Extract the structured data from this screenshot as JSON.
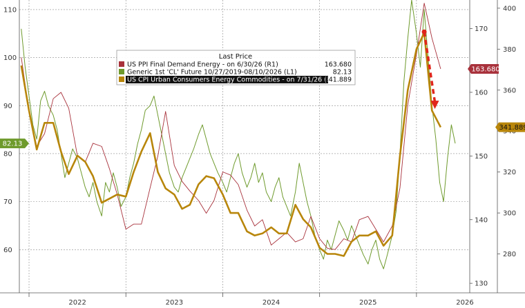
{
  "chart_data": {
    "type": "line",
    "title": "",
    "legend": {
      "title": "Last Price",
      "placement": "top-center",
      "entries": [
        {
          "label": "US PPI Final Demand Energy -   on 6/30/26  (R1)",
          "value": "163.680",
          "color": "#a8313b"
        },
        {
          "label": "Generic 1st 'CL' Future 10/27/2019-08/10/2026   (L1)",
          "value": "82.13",
          "color": "#6e9a2c"
        },
        {
          "label": "US CPI Urban Consumers Energy Commodities -   on 7/31/26  (R2)",
          "value": "341.889",
          "color": "#b8860b"
        }
      ]
    },
    "x_ticks": [
      "2022",
      "2023",
      "2024",
      "2025",
      "2026"
    ],
    "x_range": [
      2021.9,
      2026.55
    ],
    "axes": {
      "left": {
        "range": [
          51,
          112
        ],
        "ticks": [
          60,
          70,
          80,
          90,
          100,
          110
        ],
        "series": "Generic 1st 'CL' Future"
      },
      "right1": {
        "range": [
          128.5,
          174.5
        ],
        "ticks": [
          130,
          140,
          150,
          160,
          170
        ],
        "series": "US PPI Final Demand Energy"
      },
      "right2": {
        "range": [
          261,
          404
        ],
        "ticks": [
          280,
          300,
          320,
          340,
          360,
          380,
          400
        ],
        "series": "US CPI Urban Consumers Energy Commodities"
      }
    },
    "badges": [
      {
        "text": "82.13",
        "axis": "left",
        "bg": "#6e9a2c",
        "fg": "#ffffff"
      },
      {
        "text": "163.680",
        "axis": "right1",
        "bg": "#a8313b",
        "fg": "#ffffff"
      },
      {
        "text": "341.889",
        "axis": "right2",
        "bg": "#b8860b",
        "fg": "#111111"
      }
    ],
    "series": [
      {
        "name": "US PPI Final Demand Energy",
        "axis": "right1",
        "color": "#a8313b",
        "points": [
          [
            2021.92,
            165.5
          ],
          [
            2022.0,
            157.0
          ],
          [
            2022.08,
            151.5
          ],
          [
            2022.16,
            153.5
          ],
          [
            2022.25,
            159.0
          ],
          [
            2022.33,
            160.0
          ],
          [
            2022.41,
            157.5
          ],
          [
            2022.5,
            150.0
          ],
          [
            2022.58,
            149.0
          ],
          [
            2022.66,
            152.0
          ],
          [
            2022.75,
            151.5
          ],
          [
            2022.83,
            148.0
          ],
          [
            2022.91,
            144.0
          ],
          [
            2023.0,
            138.5
          ],
          [
            2023.08,
            139.3
          ],
          [
            2023.16,
            139.3
          ],
          [
            2023.25,
            145.0
          ],
          [
            2023.33,
            150.0
          ],
          [
            2023.41,
            157.0
          ],
          [
            2023.5,
            148.5
          ],
          [
            2023.58,
            146.0
          ],
          [
            2023.66,
            144.5
          ],
          [
            2023.75,
            143.0
          ],
          [
            2023.83,
            141.0
          ],
          [
            2023.91,
            143.0
          ],
          [
            2024.0,
            147.5
          ],
          [
            2024.08,
            147.0
          ],
          [
            2024.16,
            145.5
          ],
          [
            2024.25,
            141.5
          ],
          [
            2024.33,
            139.0
          ],
          [
            2024.41,
            140.0
          ],
          [
            2024.5,
            136.0
          ],
          [
            2024.58,
            137.0
          ],
          [
            2024.66,
            138.0
          ],
          [
            2024.75,
            136.5
          ],
          [
            2024.83,
            137.0
          ],
          [
            2024.91,
            140.5
          ],
          [
            2025.0,
            137.0
          ],
          [
            2025.08,
            135.5
          ],
          [
            2025.16,
            135.3
          ],
          [
            2025.25,
            137.0
          ],
          [
            2025.33,
            136.5
          ],
          [
            2025.41,
            140.0
          ],
          [
            2025.5,
            140.5
          ],
          [
            2025.58,
            138.5
          ],
          [
            2025.66,
            136.5
          ],
          [
            2025.75,
            139.0
          ],
          [
            2025.83,
            145.0
          ],
          [
            2025.91,
            158.0
          ],
          [
            2026.0,
            166.0
          ],
          [
            2026.08,
            174.0
          ],
          [
            2026.16,
            168.5
          ],
          [
            2026.25,
            163.68
          ]
        ]
      },
      {
        "name": "Generic 1st 'CL' Future",
        "axis": "left",
        "color": "#6e9a2c",
        "points": [
          [
            2021.92,
            106
          ],
          [
            2021.96,
            98
          ],
          [
            2022.0,
            92
          ],
          [
            2022.04,
            86
          ],
          [
            2022.08,
            83
          ],
          [
            2022.12,
            91
          ],
          [
            2022.16,
            93
          ],
          [
            2022.2,
            90
          ],
          [
            2022.25,
            88
          ],
          [
            2022.29,
            85
          ],
          [
            2022.33,
            80
          ],
          [
            2022.37,
            75
          ],
          [
            2022.41,
            78
          ],
          [
            2022.45,
            81
          ],
          [
            2022.5,
            79
          ],
          [
            2022.54,
            76
          ],
          [
            2022.58,
            73
          ],
          [
            2022.62,
            71
          ],
          [
            2022.66,
            74
          ],
          [
            2022.7,
            70
          ],
          [
            2022.75,
            67
          ],
          [
            2022.79,
            74
          ],
          [
            2022.83,
            72
          ],
          [
            2022.87,
            76
          ],
          [
            2022.91,
            73
          ],
          [
            2022.95,
            69
          ],
          [
            2023.0,
            71
          ],
          [
            2023.04,
            75
          ],
          [
            2023.08,
            78
          ],
          [
            2023.12,
            82
          ],
          [
            2023.16,
            85
          ],
          [
            2023.2,
            89
          ],
          [
            2023.25,
            90
          ],
          [
            2023.29,
            92
          ],
          [
            2023.33,
            88
          ],
          [
            2023.37,
            84
          ],
          [
            2023.41,
            80
          ],
          [
            2023.45,
            76
          ],
          [
            2023.5,
            73
          ],
          [
            2023.54,
            72
          ],
          [
            2023.58,
            75
          ],
          [
            2023.62,
            77
          ],
          [
            2023.66,
            79
          ],
          [
            2023.7,
            81
          ],
          [
            2023.75,
            84
          ],
          [
            2023.79,
            86
          ],
          [
            2023.83,
            83
          ],
          [
            2023.87,
            80
          ],
          [
            2023.91,
            78
          ],
          [
            2023.95,
            76
          ],
          [
            2024.0,
            74
          ],
          [
            2024.04,
            72
          ],
          [
            2024.08,
            75
          ],
          [
            2024.12,
            78
          ],
          [
            2024.16,
            80
          ],
          [
            2024.2,
            76
          ],
          [
            2024.25,
            73
          ],
          [
            2024.29,
            75
          ],
          [
            2024.33,
            78
          ],
          [
            2024.37,
            74
          ],
          [
            2024.41,
            76
          ],
          [
            2024.45,
            72
          ],
          [
            2024.5,
            70
          ],
          [
            2024.54,
            73
          ],
          [
            2024.58,
            75
          ],
          [
            2024.62,
            71
          ],
          [
            2024.66,
            69
          ],
          [
            2024.7,
            67
          ],
          [
            2024.75,
            72
          ],
          [
            2024.79,
            78
          ],
          [
            2024.83,
            74
          ],
          [
            2024.87,
            70
          ],
          [
            2024.91,
            67
          ],
          [
            2024.95,
            63
          ],
          [
            2025.0,
            60
          ],
          [
            2025.04,
            58
          ],
          [
            2025.08,
            62
          ],
          [
            2025.12,
            60
          ],
          [
            2025.16,
            63
          ],
          [
            2025.2,
            66
          ],
          [
            2025.25,
            64
          ],
          [
            2025.29,
            62
          ],
          [
            2025.33,
            65
          ],
          [
            2025.37,
            63
          ],
          [
            2025.41,
            61
          ],
          [
            2025.45,
            59
          ],
          [
            2025.5,
            57
          ],
          [
            2025.54,
            60
          ],
          [
            2025.58,
            62
          ],
          [
            2025.62,
            58
          ],
          [
            2025.66,
            56
          ],
          [
            2025.7,
            59
          ],
          [
            2025.75,
            63
          ],
          [
            2025.79,
            68
          ],
          [
            2025.83,
            80
          ],
          [
            2025.87,
            95
          ],
          [
            2025.91,
            104
          ],
          [
            2025.95,
            112
          ],
          [
            2026.0,
            105
          ],
          [
            2026.04,
            98
          ],
          [
            2026.08,
            110
          ],
          [
            2026.12,
            100
          ],
          [
            2026.16,
            90
          ],
          [
            2026.2,
            83
          ],
          [
            2026.24,
            74
          ],
          [
            2026.28,
            70
          ],
          [
            2026.32,
            79
          ],
          [
            2026.36,
            86
          ],
          [
            2026.4,
            82.13
          ]
        ]
      },
      {
        "name": "US CPI Urban Consumers Energy Commodities",
        "axis": "right2",
        "color": "#b8860b",
        "points": [
          [
            2021.92,
            372
          ],
          [
            2022.0,
            350
          ],
          [
            2022.08,
            331
          ],
          [
            2022.16,
            344
          ],
          [
            2022.25,
            344
          ],
          [
            2022.33,
            330
          ],
          [
            2022.41,
            319
          ],
          [
            2022.5,
            328
          ],
          [
            2022.58,
            325
          ],
          [
            2022.66,
            318
          ],
          [
            2022.75,
            305
          ],
          [
            2022.83,
            307
          ],
          [
            2022.91,
            309
          ],
          [
            2023.0,
            308
          ],
          [
            2023.08,
            320
          ],
          [
            2023.16,
            330
          ],
          [
            2023.25,
            339
          ],
          [
            2023.33,
            320
          ],
          [
            2023.41,
            312
          ],
          [
            2023.5,
            309
          ],
          [
            2023.58,
            302
          ],
          [
            2023.66,
            304
          ],
          [
            2023.75,
            314
          ],
          [
            2023.83,
            318
          ],
          [
            2023.91,
            317
          ],
          [
            2024.0,
            309
          ],
          [
            2024.08,
            300
          ],
          [
            2024.16,
            300
          ],
          [
            2024.25,
            291
          ],
          [
            2024.33,
            289
          ],
          [
            2024.41,
            290
          ],
          [
            2024.5,
            293
          ],
          [
            2024.58,
            290
          ],
          [
            2024.66,
            290
          ],
          [
            2024.75,
            304
          ],
          [
            2024.83,
            297
          ],
          [
            2024.91,
            293
          ],
          [
            2025.0,
            283
          ],
          [
            2025.08,
            280
          ],
          [
            2025.16,
            280
          ],
          [
            2025.25,
            279
          ],
          [
            2025.33,
            286
          ],
          [
            2025.41,
            289
          ],
          [
            2025.5,
            289
          ],
          [
            2025.58,
            291
          ],
          [
            2025.66,
            284
          ],
          [
            2025.75,
            289
          ],
          [
            2025.83,
            328
          ],
          [
            2025.91,
            360
          ],
          [
            2026.0,
            380
          ],
          [
            2026.08,
            388
          ],
          [
            2026.16,
            350
          ],
          [
            2026.25,
            341.889
          ]
        ]
      }
    ],
    "annotation": {
      "type": "dashed-arrow",
      "color": "#e0251b",
      "from": [
        2026.08,
        169.5
      ],
      "to": [
        2026.19,
        157.6
      ],
      "axis": "right1"
    }
  }
}
